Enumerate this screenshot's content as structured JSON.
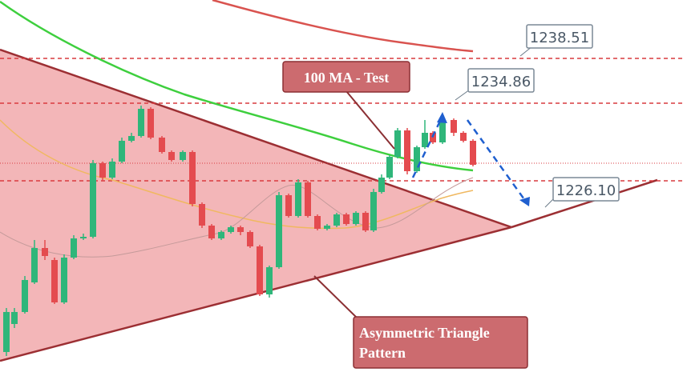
{
  "chart_data": {
    "type": "candlestick",
    "colors": {
      "bull": "#2fb67a",
      "bear": "#e44b4f",
      "ma_green": "#3ecf3e",
      "ma_red": "#d9534f",
      "ma_orange": "#f0b860",
      "triangle_fill": "#f1a9ab",
      "triangle_edge": "#9c2f33",
      "label_fill": "#cc6b6f",
      "level_line": "#d93a3f"
    },
    "price_levels": [
      {
        "label": "1238.51",
        "value": 1238.51
      },
      {
        "label": "1234.86",
        "value": 1234.86
      },
      {
        "label": "1226.10",
        "value": 1226.1
      }
    ],
    "annotations": [
      {
        "text": "100 MA - Test"
      },
      {
        "text": "Asymmetric Triangle Pattern",
        "lines": [
          "Asymmetric Triangle",
          "Pattern"
        ]
      }
    ],
    "pattern": "asymmetric-triangle",
    "projection": "down-arrow"
  }
}
